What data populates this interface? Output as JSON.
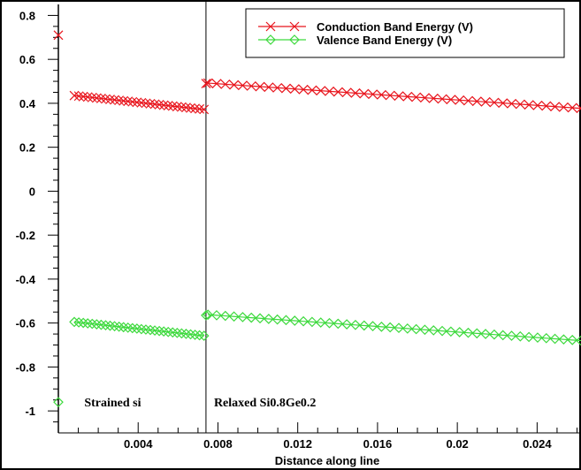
{
  "chart_data": {
    "type": "line",
    "xlabel": "Distance along line",
    "ylabel": "",
    "xlim": [
      0.0,
      0.0262
    ],
    "ylim": [
      -1.1,
      0.85
    ],
    "x_ticks": [
      0.004,
      0.008,
      0.012,
      0.016,
      0.02,
      0.024
    ],
    "x_tick_labels": [
      "0.004",
      "0.008",
      "0.012",
      "0.016",
      "0.02",
      "0.024"
    ],
    "y_ticks": [
      0.8,
      0.6,
      0.4,
      0.2,
      0,
      -0.2,
      -0.4,
      -0.6,
      -0.8,
      -1
    ],
    "y_tick_labels": [
      "0.8",
      "0.6",
      "0.4",
      "0.2",
      "0",
      "-0.2",
      "-0.4",
      "-0.6",
      "-0.8",
      "-1"
    ],
    "interface_x": 0.0074,
    "legend_position": "top-right",
    "regions": [
      {
        "label": "Strained si",
        "x": 0.0013,
        "y": -0.96
      },
      {
        "label": "Relaxed Si0.8Ge0.2",
        "x": 0.0078,
        "y": -0.96
      }
    ],
    "series": [
      {
        "name": "Conduction Band Energy (V)",
        "color": "#e8141c",
        "marker": "x-cross",
        "segments": [
          {
            "x0": 0.0008,
            "x1": 0.0073,
            "y0": 0.435,
            "y1": 0.372,
            "count": 30
          },
          {
            "x0": 0.0075,
            "x1": 0.0262,
            "y0": 0.492,
            "y1": 0.377,
            "count": 44
          }
        ],
        "extra_points": [
          {
            "x": 0.0,
            "y": 0.71
          },
          {
            "x": 0.0074,
            "y": 0.49
          }
        ]
      },
      {
        "name": "Valence Band Energy (V)",
        "color": "#3dd93d",
        "marker": "diamond",
        "segments": [
          {
            "x0": 0.0008,
            "x1": 0.0073,
            "y0": -0.595,
            "y1": -0.658,
            "count": 30
          },
          {
            "x0": 0.0075,
            "x1": 0.0262,
            "y0": -0.562,
            "y1": -0.68,
            "count": 44
          }
        ],
        "extra_points": [
          {
            "x": 0.0,
            "y": -0.96
          },
          {
            "x": 0.0074,
            "y": -0.565
          }
        ]
      }
    ]
  },
  "colors": {
    "frame": "#000000",
    "background": "#ffffff"
  }
}
